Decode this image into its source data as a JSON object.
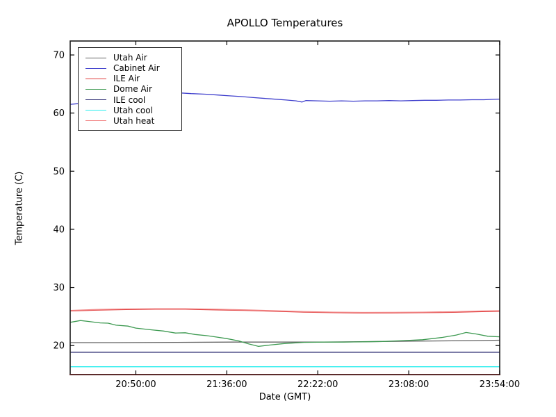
{
  "chart_data": {
    "type": "line",
    "title": "APOLLO Temperatures",
    "xlabel": "Date (GMT)",
    "ylabel": "Temperature (C)",
    "grid": false,
    "legend_position": "upper left",
    "x_unit": "minutes after 20:00:00 GMT",
    "xlim": [
      16.8,
      234
    ],
    "ylim": [
      15.0,
      72.4
    ],
    "x_ticks": [
      {
        "t": 50,
        "label": "20:50:00"
      },
      {
        "t": 96,
        "label": "21:36:00"
      },
      {
        "t": 142,
        "label": "22:22:00"
      },
      {
        "t": 188,
        "label": "23:08:00"
      },
      {
        "t": 234,
        "label": "23:54:00"
      }
    ],
    "y_ticks": [
      20,
      30,
      40,
      50,
      60,
      70
    ],
    "frame_color": "#1a1a1a",
    "bottom_spine_color": "#5c2b2b",
    "series": [
      {
        "name": "Utah Air",
        "color": "#606060",
        "points": [
          [
            17,
            20.5
          ],
          [
            40,
            20.5
          ],
          [
            70,
            20.55
          ],
          [
            100,
            20.6
          ],
          [
            130,
            20.6
          ],
          [
            145,
            20.6
          ],
          [
            160,
            20.65
          ],
          [
            175,
            20.7
          ],
          [
            190,
            20.75
          ],
          [
            205,
            20.8
          ],
          [
            220,
            20.85
          ],
          [
            234,
            20.92
          ]
        ]
      },
      {
        "name": "Cabinet Air",
        "color": "#3d3dcc",
        "points": [
          [
            17,
            61.5
          ],
          [
            20,
            61.6
          ],
          [
            28,
            61.9
          ],
          [
            38,
            62.4
          ],
          [
            48,
            62.9
          ],
          [
            58,
            63.2
          ],
          [
            66,
            63.4
          ],
          [
            73,
            63.45
          ],
          [
            78,
            63.35
          ],
          [
            85,
            63.25
          ],
          [
            92,
            63.1
          ],
          [
            96,
            63.0
          ],
          [
            103,
            62.85
          ],
          [
            110,
            62.65
          ],
          [
            118,
            62.45
          ],
          [
            126,
            62.25
          ],
          [
            131,
            62.1
          ],
          [
            134,
            61.9
          ],
          [
            136,
            62.15
          ],
          [
            142,
            62.1
          ],
          [
            148,
            62.05
          ],
          [
            154,
            62.1
          ],
          [
            160,
            62.05
          ],
          [
            166,
            62.1
          ],
          [
            172,
            62.1
          ],
          [
            178,
            62.15
          ],
          [
            184,
            62.1
          ],
          [
            190,
            62.15
          ],
          [
            196,
            62.2
          ],
          [
            202,
            62.2
          ],
          [
            208,
            62.25
          ],
          [
            214,
            62.25
          ],
          [
            220,
            62.3
          ],
          [
            226,
            62.3
          ],
          [
            230,
            62.35
          ],
          [
            234,
            62.4
          ]
        ]
      },
      {
        "name": "ILE Air",
        "color": "#e03c3c",
        "points": [
          [
            17,
            25.95
          ],
          [
            30,
            26.1
          ],
          [
            45,
            26.2
          ],
          [
            60,
            26.25
          ],
          [
            75,
            26.25
          ],
          [
            90,
            26.15
          ],
          [
            105,
            26.05
          ],
          [
            120,
            25.9
          ],
          [
            135,
            25.75
          ],
          [
            150,
            25.65
          ],
          [
            165,
            25.6
          ],
          [
            180,
            25.62
          ],
          [
            195,
            25.65
          ],
          [
            210,
            25.72
          ],
          [
            225,
            25.85
          ],
          [
            234,
            25.9
          ]
        ]
      },
      {
        "name": "Dome Air",
        "color": "#3c9950",
        "points": [
          [
            17,
            24.0
          ],
          [
            22,
            24.3
          ],
          [
            26,
            24.15
          ],
          [
            32,
            23.9
          ],
          [
            36,
            23.85
          ],
          [
            40,
            23.5
          ],
          [
            46,
            23.35
          ],
          [
            50,
            23.0
          ],
          [
            58,
            22.7
          ],
          [
            64,
            22.5
          ],
          [
            70,
            22.15
          ],
          [
            75,
            22.2
          ],
          [
            80,
            21.9
          ],
          [
            86,
            21.7
          ],
          [
            90,
            21.5
          ],
          [
            96,
            21.2
          ],
          [
            102,
            20.8
          ],
          [
            107,
            20.3
          ],
          [
            112,
            19.85
          ],
          [
            118,
            20.1
          ],
          [
            125,
            20.35
          ],
          [
            135,
            20.55
          ],
          [
            145,
            20.6
          ],
          [
            155,
            20.6
          ],
          [
            165,
            20.65
          ],
          [
            175,
            20.7
          ],
          [
            185,
            20.85
          ],
          [
            195,
            21.0
          ],
          [
            205,
            21.4
          ],
          [
            212,
            21.8
          ],
          [
            217,
            22.25
          ],
          [
            222,
            22.0
          ],
          [
            228,
            21.6
          ],
          [
            234,
            21.5
          ]
        ]
      },
      {
        "name": "ILE cool",
        "color": "#2a2a70",
        "points": [
          [
            17,
            18.85
          ],
          [
            80,
            18.85
          ],
          [
            150,
            18.85
          ],
          [
            234,
            18.85
          ]
        ]
      },
      {
        "name": "Utah cool",
        "color": "#26eded",
        "points": [
          [
            17,
            16.35
          ],
          [
            80,
            16.35
          ],
          [
            150,
            16.35
          ],
          [
            234,
            16.35
          ]
        ]
      },
      {
        "name": "Utah heat",
        "color": "#f28b8b",
        "points": [
          [
            17,
            26.05
          ],
          [
            30,
            26.2
          ],
          [
            45,
            26.3
          ],
          [
            60,
            26.35
          ],
          [
            75,
            26.35
          ],
          [
            90,
            26.25
          ],
          [
            105,
            26.15
          ],
          [
            120,
            26.0
          ],
          [
            135,
            25.85
          ],
          [
            150,
            25.75
          ],
          [
            165,
            25.7
          ],
          [
            180,
            25.72
          ],
          [
            195,
            25.75
          ],
          [
            210,
            25.82
          ],
          [
            225,
            25.95
          ],
          [
            234,
            26.0
          ]
        ]
      }
    ]
  }
}
